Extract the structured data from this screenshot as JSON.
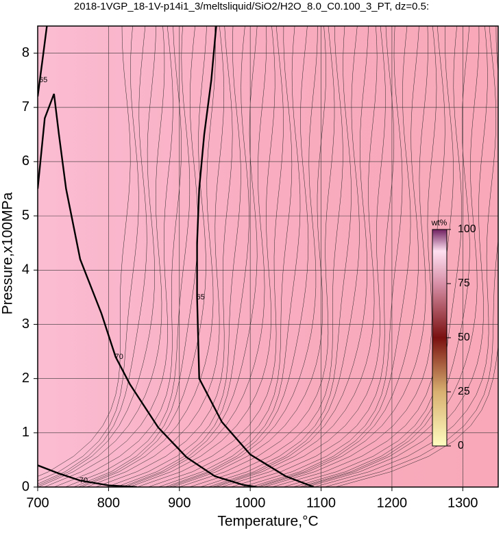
{
  "chart_data": {
    "type": "contour",
    "title": "2018-1VGP_18-1V-p14i1_3/meltsliquid/SiO2/H2O_8.0_C0.100_3_PT, dz=0.5:",
    "x_label": "Temperature,°C",
    "y_label": "Pressure,x100MPa",
    "xlim": [
      700,
      1350
    ],
    "ylim": [
      0,
      8.5
    ],
    "xticks": [
      700,
      800,
      900,
      1000,
      1100,
      1200,
      1300
    ],
    "yticks": [
      0,
      1,
      2,
      3,
      4,
      5,
      6,
      7,
      8
    ],
    "grid": true,
    "contours": [
      {
        "level": 70,
        "x": [
          700,
          710,
          723,
          730,
          740,
          760,
          790,
          810,
          830,
          870,
          910,
          950,
          990,
          1010
        ],
        "y": [
          5.5,
          6.8,
          7.25,
          6.5,
          5.5,
          4.2,
          3.2,
          2.4,
          1.9,
          1.1,
          0.55,
          0.2,
          0.04,
          0
        ]
      },
      {
        "level": 65,
        "x": [
          952,
          945,
          935,
          928,
          925,
          925,
          928,
          960,
          1000,
          1050,
          1090
        ],
        "y": [
          8.5,
          7.5,
          6.5,
          5.5,
          4.5,
          3.5,
          2,
          1.2,
          0.6,
          0.2,
          0
        ]
      },
      {
        "level": 65,
        "x": [
          713,
          708,
          703,
          700
        ],
        "y": [
          8.5,
          8,
          7.5,
          7.2
        ]
      },
      {
        "level": 70,
        "x": [
          700,
          730,
          760,
          800,
          840
        ],
        "y": [
          0.4,
          0.25,
          0.12,
          0.03,
          0
        ]
      }
    ],
    "colorbar": {
      "label": "wt%",
      "lim": [
        0,
        100
      ],
      "ticks": [
        0,
        25,
        50,
        75,
        100
      ]
    }
  }
}
